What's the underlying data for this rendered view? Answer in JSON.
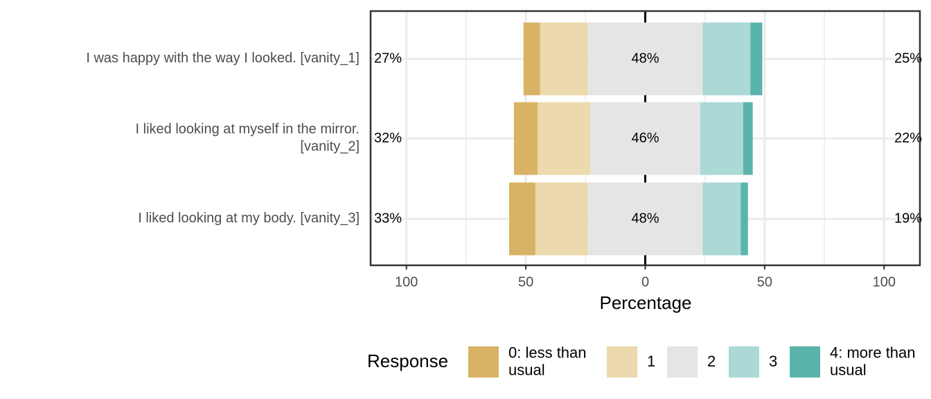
{
  "chart_data": {
    "type": "diverging_bar",
    "categories": [
      [
        "I was happy with the way I looked. [vanity_1]"
      ],
      [
        "I liked looking at myself in the mirror.",
        "[vanity_2]"
      ],
      [
        "I liked looking at my body. [vanity_3]"
      ]
    ],
    "series": [
      {
        "name": [
          "0: less than",
          "usual"
        ],
        "color": "#d8b365",
        "values": [
          7,
          10,
          11
        ]
      },
      {
        "name": [
          "1"
        ],
        "color": "#ecd9ae",
        "values": [
          20,
          22,
          22
        ]
      },
      {
        "name": [
          "2"
        ],
        "color": "#e5e5e5",
        "values": [
          48,
          46,
          48
        ]
      },
      {
        "name": [
          "3"
        ],
        "color": "#abd9d5",
        "values": [
          20,
          18,
          16
        ]
      },
      {
        "name": [
          "4: more than",
          "usual"
        ],
        "color": "#5ab4ac",
        "values": [
          5,
          4,
          3
        ]
      }
    ],
    "low_labels": [
      "27%",
      "32%",
      "33%"
    ],
    "mid_labels": [
      "48%",
      "46%",
      "48%"
    ],
    "high_labels": [
      "25%",
      "22%",
      "19%"
    ],
    "xlim": [
      -115,
      115
    ],
    "xticks": [
      {
        "value": -100,
        "label": "100"
      },
      {
        "value": -50,
        "label": "50"
      },
      0,
      50,
      100
    ],
    "minor_xticks": [
      -75,
      -25,
      25,
      75
    ],
    "xlabel": "Percentage",
    "legend_title": "Response",
    "grid": true
  }
}
